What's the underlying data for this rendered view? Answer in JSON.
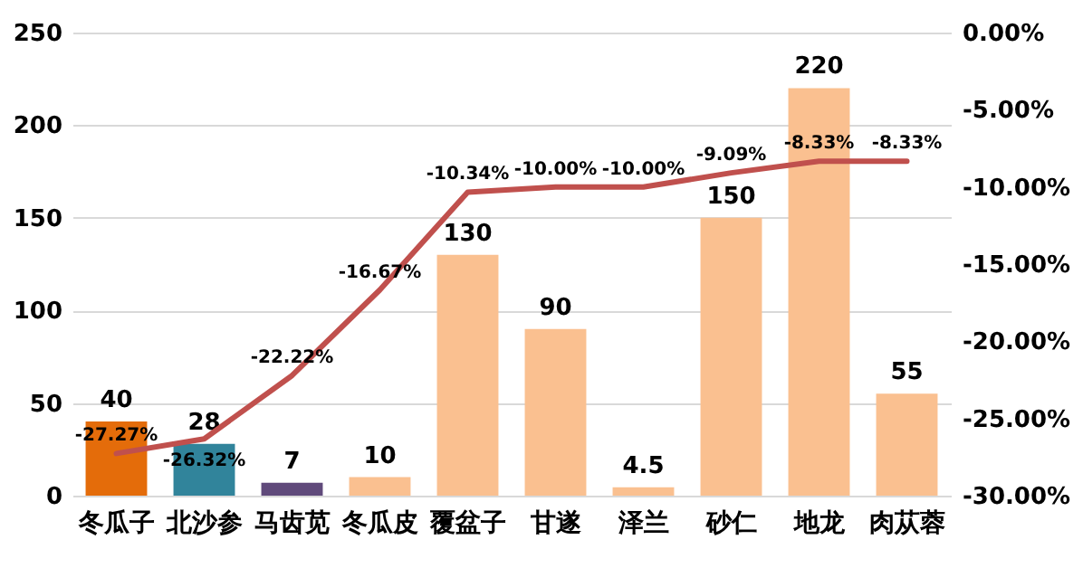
{
  "chart_data": {
    "type": "bar",
    "categories": [
      "冬瓜子",
      "北沙参",
      "马齿苋",
      "冬瓜皮",
      "覆盆子",
      "甘遂",
      "泽兰",
      "砂仁",
      "地龙",
      "肉苁蓉"
    ],
    "series": [
      {
        "colors": [
          "#e46c0a",
          "#31849b",
          "#604a7b",
          "#fac090",
          "#fac090",
          "#fac090",
          "#fac090",
          "#fac090",
          "#fac090",
          "#fac090"
        ],
        "values": [
          40,
          28,
          7,
          10,
          130,
          90,
          4.5,
          150,
          220,
          55
        ],
        "value_labels": [
          "40",
          "28",
          "7",
          "10",
          "130",
          "90",
          "4.5",
          "150",
          "220",
          "55"
        ]
      },
      {
        "type": "line",
        "axis": "y2",
        "color": "#c0504d",
        "values": [
          -27.27,
          -26.32,
          -22.22,
          -16.67,
          -10.34,
          -10.0,
          -10.0,
          -9.09,
          -8.33,
          -8.33
        ],
        "value_labels": [
          "-27.27%",
          "-26.32%",
          "-22.22%",
          "-16.67%",
          "-10.34%",
          "-10.00%",
          "-10.00%",
          "-9.09%",
          "-8.33%",
          "-8.33%"
        ]
      }
    ],
    "ylim": [
      0,
      250
    ],
    "yticks": [
      0,
      50,
      100,
      150,
      200,
      250
    ],
    "y2lim": [
      -30,
      0
    ],
    "y2ticks": [
      {
        "value": -30,
        "label": "-30.00%"
      },
      {
        "value": -25,
        "label": "-25.00%"
      },
      {
        "value": -20,
        "label": "-20.00%"
      },
      {
        "value": -15,
        "label": "-15.00%"
      },
      {
        "value": -10,
        "label": "-10.00%"
      },
      {
        "value": -5,
        "label": "-5.00%"
      },
      {
        "value": 0,
        "label": "0.00%"
      }
    ],
    "grid": "y"
  }
}
